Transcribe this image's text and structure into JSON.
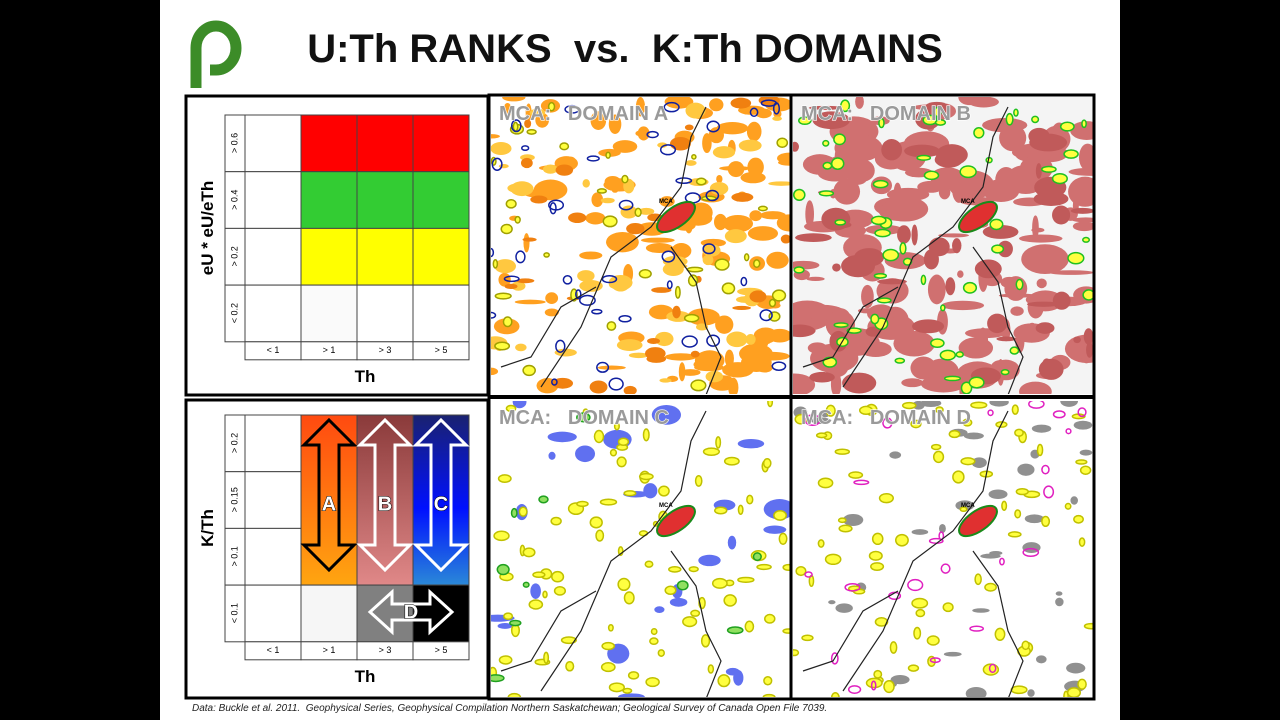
{
  "header": {
    "title": "U:Th RANKS  vs.  K:Th DOMAINS"
  },
  "uth_grid": {
    "y_label": "eU * eU/eTh",
    "rows": [
      "> 0.6",
      "> 0.4",
      "> 0.2",
      "< 0.2"
    ],
    "columns": [
      "< 1",
      "> 1",
      "> 3",
      "> 5"
    ],
    "x_label": "Th"
  },
  "kth_grid": {
    "y_label": "K/Th",
    "rows": [
      "> 0.2",
      "> 0.15",
      "> 0.1",
      "< 0.1"
    ],
    "columns": [
      "< 1",
      "> 1",
      "> 3",
      "> 5"
    ],
    "x_label": "Th",
    "domains": [
      "A",
      "B",
      "C",
      "D"
    ]
  },
  "maps": [
    {
      "title": "MCA:   DOMAIN A",
      "marker": "MCA"
    },
    {
      "title": "MCA:   DOMAIN B",
      "marker": "MCA"
    },
    {
      "title": "MCA:   DOMAIN C",
      "marker": "MCA"
    },
    {
      "title": "MCA:   DOMAIN D",
      "marker": "MCA"
    }
  ],
  "footer": {
    "citation": "Data: Buckle et al. 2011.  Geophysical Series, Geophysical Compilation Northern Saskatchewan; Geological Survey of Canada Open File 7039."
  }
}
